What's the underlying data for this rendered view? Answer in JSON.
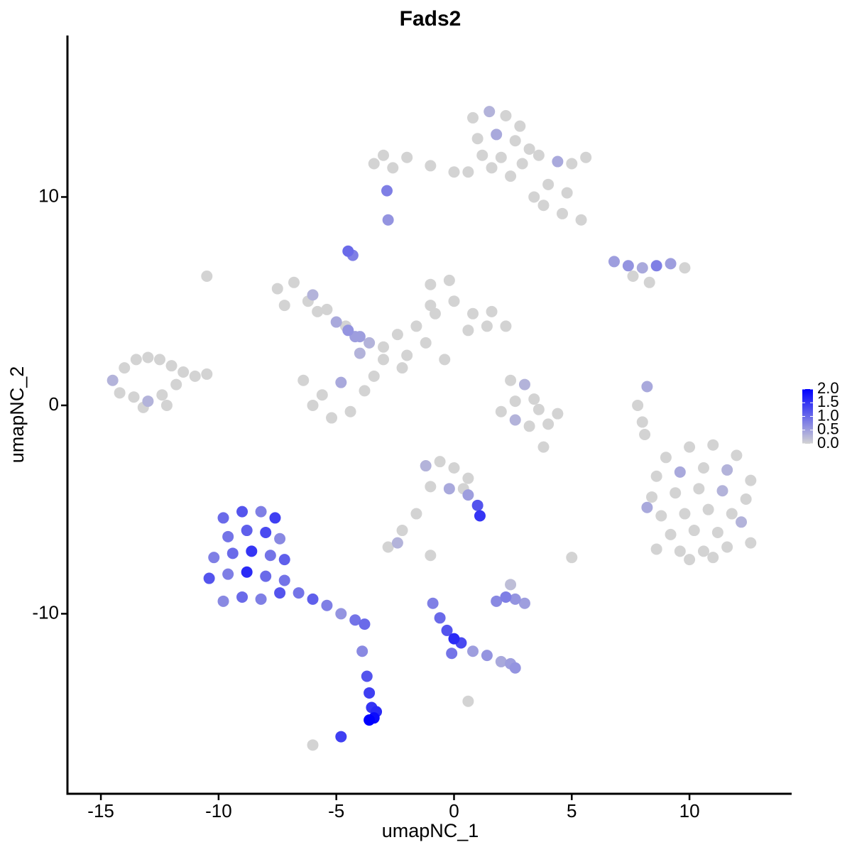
{
  "chart_data": {
    "type": "scatter",
    "title": "Fads2",
    "xlabel": "umapNC_1",
    "ylabel": "umapNC_2",
    "xlim": [
      -16.42,
      14.34
    ],
    "ylim": [
      -18.64,
      17.75
    ],
    "xticks": [
      -15,
      -10,
      -5,
      0,
      5,
      10
    ],
    "yticks": [
      -10,
      0,
      10
    ],
    "color_low": "#d3d3d3",
    "color_high": "#0000ff",
    "clim": [
      0,
      2
    ],
    "colorbar_ticks": [
      {
        "value": 2,
        "label": "2.0"
      },
      {
        "value": 1.5,
        "label": "1.5"
      },
      {
        "value": 1,
        "label": "1.0"
      },
      {
        "value": 0.5,
        "label": "0.5"
      },
      {
        "value": 0,
        "label": "0.0"
      }
    ],
    "x": [
      0.8,
      1.5,
      2.2,
      2.8,
      1.0,
      1.8,
      2.6,
      3.2,
      1.2,
      2.0,
      2.9,
      0.6,
      1.6,
      2.4,
      3.6,
      4.4,
      5.0,
      5.6,
      4.0,
      4.8,
      3.8,
      4.6,
      5.4,
      3.4,
      0.0,
      -1.0,
      -2.0,
      -3.0,
      -3.4,
      -2.6,
      -2.85,
      -2.8,
      -4.5,
      -4.3,
      -7.5,
      -6.8,
      -6.0,
      -7.2,
      -5.8,
      -5.0,
      -4.5,
      -4.0,
      -3.6,
      -3.0,
      -2.4,
      -1.6,
      -0.8,
      0.0,
      0.8,
      1.6,
      2.2,
      -1.0,
      -0.2,
      0.6,
      1.4,
      -2.0,
      -1.2,
      -3.0,
      -4.0,
      -4.6,
      -5.4,
      -6.2,
      -6.4,
      -5.6,
      -4.8,
      -6.0,
      -5.2,
      -4.4,
      -3.8,
      -2.2,
      -3.4,
      -4.2,
      -1.0,
      -0.4,
      -14.5,
      -14.0,
      -13.5,
      -13.0,
      -12.5,
      -12.0,
      -11.5,
      -14.2,
      -13.6,
      -13.0,
      -12.4,
      -11.8,
      -11.0,
      -10.5,
      -13.2,
      -12.2,
      9.0,
      10.0,
      11.0,
      12.0,
      8.6,
      9.6,
      10.6,
      11.6,
      12.6,
      8.4,
      9.4,
      10.4,
      11.4,
      12.4,
      8.8,
      9.8,
      10.8,
      11.8,
      12.2,
      9.2,
      10.2,
      11.2,
      8.6,
      9.6,
      10.6,
      11.6,
      12.6,
      10.0,
      11.0,
      8.2,
      -9.8,
      -9.0,
      -8.2,
      -7.6,
      -9.6,
      -8.8,
      -8.0,
      -7.4,
      -10.2,
      -9.4,
      -8.6,
      -7.8,
      -7.2,
      -10.4,
      -9.6,
      -8.8,
      -8.0,
      -7.2,
      -9.8,
      -9.0,
      -8.2,
      -7.4,
      -6.6,
      -6.0,
      -5.4,
      -4.8,
      -4.2,
      -3.8,
      -3.9,
      -3.7,
      -3.6,
      -3.5,
      -3.4,
      -3.3,
      -3.6,
      -4.8,
      -1.2,
      -0.6,
      0.0,
      0.6,
      -1.0,
      -0.2,
      0.6,
      1.0,
      1.1,
      -1.6,
      -2.2,
      -2.8,
      -2.4,
      0.4,
      2.4,
      3.0,
      2.6,
      3.4,
      2.0,
      2.6,
      3.2,
      4.0,
      3.6,
      4.4,
      6.8,
      7.4,
      8.0,
      8.6,
      9.2,
      9.8,
      8.3,
      7.6,
      8.2,
      7.8,
      8.0,
      8.1,
      1.8,
      2.2,
      2.6,
      3.0,
      2.4,
      -0.9,
      -0.6,
      -0.3,
      0.0,
      0.3,
      -0.1,
      0.8,
      1.4,
      2.0,
      2.4,
      2.6,
      5.0,
      -6.0,
      0.6,
      3.8,
      -10.5,
      -1.0
    ],
    "values": [
      13.8,
      14.1,
      13.9,
      13.4,
      12.8,
      13.0,
      12.7,
      12.3,
      12.0,
      11.9,
      11.6,
      11.2,
      11.4,
      11.0,
      12.0,
      11.7,
      11.6,
      11.9,
      10.6,
      10.2,
      9.6,
      9.2,
      8.9,
      10.0,
      11.2,
      11.5,
      11.9,
      12.0,
      11.6,
      11.4,
      10.3,
      8.9,
      7.4,
      7.2,
      5.6,
      5.9,
      5.3,
      4.8,
      4.5,
      4.0,
      3.6,
      3.3,
      3.0,
      2.8,
      3.4,
      3.8,
      4.4,
      5.0,
      4.4,
      4.5,
      3.8,
      5.8,
      6.0,
      3.6,
      3.8,
      2.4,
      3.0,
      2.2,
      2.5,
      3.8,
      4.6,
      5.0,
      1.2,
      0.5,
      1.1,
      0.0,
      -0.6,
      -0.3,
      0.7,
      1.8,
      1.4,
      3.3,
      4.8,
      2.2,
      1.2,
      1.8,
      2.2,
      2.3,
      2.2,
      1.9,
      1.6,
      0.6,
      0.4,
      0.2,
      0.5,
      1.0,
      1.4,
      1.5,
      -0.1,
      0.0,
      -2.5,
      -2.0,
      -1.9,
      -2.4,
      -3.4,
      -3.2,
      -3.0,
      -3.1,
      -3.6,
      -4.4,
      -4.2,
      -4.0,
      -4.1,
      -4.5,
      -5.3,
      -5.2,
      -5.0,
      -5.2,
      -5.6,
      -6.2,
      -6.0,
      -6.1,
      -6.9,
      -7.0,
      -7.0,
      -6.8,
      -6.6,
      -7.4,
      -7.3,
      -4.9,
      -5.4,
      -5.1,
      -5.1,
      -5.4,
      -6.3,
      -6.0,
      -6.1,
      -6.4,
      -7.3,
      -7.1,
      -7.0,
      -7.2,
      -7.4,
      -8.3,
      -8.1,
      -8.0,
      -8.2,
      -8.4,
      -9.4,
      -9.2,
      -9.3,
      -9.0,
      -9.0,
      -9.3,
      -9.6,
      -10.0,
      -10.3,
      -10.5,
      -11.8,
      -13.0,
      -13.8,
      -14.5,
      -15.0,
      -14.7,
      -15.1,
      -15.9,
      -2.9,
      -2.7,
      -3.0,
      -3.5,
      -3.9,
      -4.0,
      -4.3,
      -4.8,
      -5.3,
      -5.2,
      -6.0,
      -6.8,
      -6.6,
      -4.0,
      1.2,
      1.0,
      0.2,
      0.3,
      -0.3,
      -0.7,
      -1.0,
      -0.9,
      -0.2,
      -0.4,
      6.9,
      6.7,
      6.6,
      6.7,
      6.8,
      6.6,
      5.9,
      6.2,
      0.9,
      0.0,
      -0.8,
      -1.4,
      -9.4,
      -9.2,
      -9.3,
      -9.5,
      -8.6,
      -9.5,
      -10.2,
      -10.8,
      -11.2,
      -11.4,
      -11.9,
      -11.8,
      -12.0,
      -12.3,
      -12.4,
      -12.6,
      -7.3,
      -16.3,
      -14.2,
      -2.0,
      6.2,
      -7.2
    ],
    "expression": [
      0,
      0.3,
      0,
      0,
      0,
      0.4,
      0,
      0,
      0,
      0,
      0,
      0,
      0,
      0,
      0,
      0.4,
      0,
      0,
      0,
      0,
      0,
      0,
      0,
      0,
      0,
      0,
      0,
      0,
      0,
      0,
      0.8,
      0.6,
      1.0,
      0.8,
      0,
      0,
      0.3,
      0,
      0,
      0.4,
      0.6,
      0.5,
      0.3,
      0,
      0,
      0,
      0,
      0,
      0,
      0,
      0,
      0,
      0,
      0,
      0,
      0,
      0,
      0,
      0.3,
      0,
      0,
      0,
      0,
      0,
      0.4,
      0,
      0,
      0,
      0,
      0,
      0,
      0.5,
      0,
      0,
      0.3,
      0,
      0,
      0,
      0,
      0,
      0,
      0,
      0,
      0.3,
      0,
      0,
      0,
      0,
      0,
      0,
      0,
      0,
      0,
      0,
      0,
      0.4,
      0,
      0.3,
      0,
      0,
      0,
      0,
      0.3,
      0,
      0,
      0,
      0,
      0,
      0.3,
      0,
      0,
      0,
      0,
      0,
      0,
      0,
      0,
      0,
      0,
      0.4,
      1.0,
      1.2,
      0.8,
      1.4,
      0.9,
      1.1,
      1.3,
      0.7,
      0.8,
      1.0,
      1.5,
      0.9,
      1.1,
      1.2,
      0.8,
      1.6,
      1.0,
      0.9,
      0.7,
      1.0,
      0.8,
      1.2,
      0.9,
      1.1,
      0.8,
      0.6,
      0.9,
      1.0,
      0.7,
      1.2,
      1.4,
      1.5,
      1.9,
      1.6,
      2.0,
      1.4,
      0.3,
      0,
      0,
      0,
      0,
      0.4,
      0.5,
      1.2,
      1.5,
      0,
      0,
      0,
      0.3,
      0,
      0,
      0.3,
      0,
      0,
      0,
      0.3,
      0,
      0,
      0,
      0,
      0.5,
      0.6,
      0.4,
      0.8,
      0.5,
      0,
      0,
      0,
      0.4,
      0,
      0,
      0,
      0.7,
      0.8,
      0.6,
      0.5,
      0.2,
      0.8,
      1.0,
      1.2,
      1.6,
      1.3,
      0.9,
      0.5,
      0.6,
      0.4,
      0.5,
      0.6,
      0,
      0,
      0,
      0,
      0,
      0
    ]
  }
}
